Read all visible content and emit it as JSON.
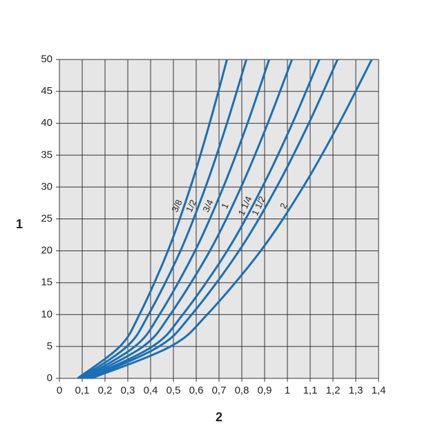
{
  "chart_data": {
    "type": "line",
    "x_label": "2",
    "y_label": "1",
    "xlim": [
      0,
      1.4
    ],
    "ylim": [
      0,
      50
    ],
    "xticks": [
      0,
      {
        "value": 0.1,
        "label": "0,1"
      },
      {
        "value": 0.2,
        "label": "0,2"
      },
      {
        "value": 0.3,
        "label": "0,3"
      },
      {
        "value": 0.4,
        "label": "0,4"
      },
      {
        "value": 0.5,
        "label": "0,5"
      },
      {
        "value": 0.6,
        "label": "0,6"
      },
      {
        "value": 0.7,
        "label": "0,7"
      },
      {
        "value": 0.8,
        "label": "0,8"
      },
      {
        "value": 0.9,
        "label": "0,9"
      },
      1,
      {
        "value": 1.1,
        "label": "1,1"
      },
      {
        "value": 1.2,
        "label": "1,2"
      },
      {
        "value": 1.3,
        "label": "1,3"
      },
      {
        "value": 1.4,
        "label": "1,4"
      }
    ],
    "yticks": [
      0,
      5,
      10,
      15,
      20,
      25,
      30,
      35,
      40,
      45,
      50
    ],
    "grid": true,
    "series": [
      {
        "name": "3/8",
        "color": "#1a6fb5",
        "x": [
          0.08,
          0.265,
          0.351,
          0.476,
          0.575,
          0.659,
          0.735
        ],
        "values": [
          0,
          5,
          10,
          20,
          30,
          40,
          50
        ]
      },
      {
        "name": "1/2",
        "color": "#1a6fb5",
        "x": [
          0.09,
          0.296,
          0.391,
          0.531,
          0.641,
          0.735,
          0.82
        ],
        "values": [
          0,
          5,
          10,
          20,
          30,
          40,
          50
        ]
      },
      {
        "name": "3/4",
        "color": "#1a6fb5",
        "x": [
          0.1,
          0.331,
          0.439,
          0.595,
          0.719,
          0.825,
          0.92
        ],
        "values": [
          0,
          5,
          10,
          20,
          30,
          40,
          50
        ]
      },
      {
        "name": "1",
        "color": "#1a6fb5",
        "x": [
          0.11,
          0.367,
          0.486,
          0.66,
          0.797,
          0.914,
          1.02
        ],
        "values": [
          0,
          5,
          10,
          20,
          30,
          40,
          50
        ]
      },
      {
        "name": "1 1/4",
        "color": "#1a6fb5",
        "x": [
          0.12,
          0.408,
          0.541,
          0.736,
          0.89,
          1.022,
          1.14
        ],
        "values": [
          0,
          5,
          10,
          20,
          30,
          40,
          50
        ]
      },
      {
        "name": "1 1/2",
        "color": "#1a6fb5",
        "x": [
          0.13,
          0.437,
          0.58,
          0.788,
          0.953,
          1.094,
          1.22
        ],
        "values": [
          0,
          5,
          10,
          20,
          30,
          40,
          50
        ]
      },
      {
        "name": "2",
        "color": "#1a6fb5",
        "x": [
          0.14,
          0.487,
          0.648,
          0.883,
          1.069,
          1.227,
          1.37
        ],
        "values": [
          0,
          5,
          10,
          20,
          30,
          40,
          50
        ]
      }
    ]
  }
}
